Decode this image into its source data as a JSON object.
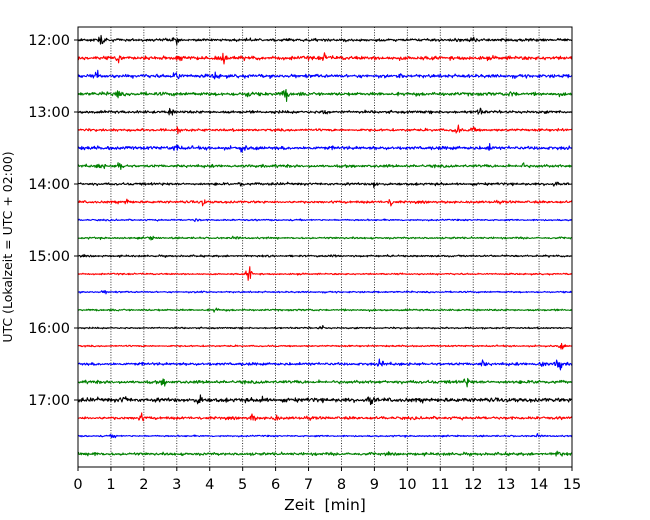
{
  "chart_data": {
    "type": "line",
    "title": "",
    "xlabel": "Zeit  [min]",
    "ylabel": "UTC (Lokalzeit = UTC + 02:00)",
    "xlim": [
      0,
      15
    ],
    "x_ticks": [
      "0",
      "1",
      "2",
      "3",
      "4",
      "5",
      "6",
      "7",
      "8",
      "9",
      "10",
      "11",
      "12",
      "13",
      "14",
      "15"
    ],
    "y_ticks": [
      "12:00",
      "13:00",
      "14:00",
      "15:00",
      "16:00",
      "17:00"
    ],
    "grid": {
      "vertical": true,
      "style": "dotted"
    },
    "trace_interval_minutes": 15,
    "colors": [
      "#000000",
      "#ff0000",
      "#0000ff",
      "#008000"
    ],
    "series": [
      {
        "start": "12:00",
        "noise": 0.9,
        "events": [
          [
            0.7,
            3.2
          ],
          [
            3.0,
            2.0
          ],
          [
            12.0,
            1.8
          ]
        ]
      },
      {
        "start": "12:15",
        "noise": 1.2,
        "events": [
          [
            1.2,
            3.0
          ],
          [
            3.1,
            3.5
          ],
          [
            4.4,
            2.2
          ],
          [
            7.5,
            2.0
          ]
        ]
      },
      {
        "start": "12:30",
        "noise": 1.1,
        "events": [
          [
            0.6,
            2.0
          ],
          [
            3.0,
            3.5
          ],
          [
            4.2,
            2.0
          ],
          [
            9.8,
            1.8
          ]
        ]
      },
      {
        "start": "12:45",
        "noise": 1.1,
        "events": [
          [
            1.2,
            2.0
          ],
          [
            5.2,
            2.5
          ],
          [
            6.3,
            4.0
          ],
          [
            13.2,
            2.0
          ]
        ]
      },
      {
        "start": "13:00",
        "noise": 0.9,
        "events": [
          [
            2.8,
            2.0
          ],
          [
            7.5,
            2.0
          ],
          [
            12.2,
            2.0
          ]
        ]
      },
      {
        "start": "13:15",
        "noise": 0.8,
        "events": [
          [
            3.0,
            1.6
          ],
          [
            11.5,
            3.0
          ],
          [
            12.0,
            2.0
          ]
        ]
      },
      {
        "start": "13:30",
        "noise": 1.1,
        "events": [
          [
            3.0,
            2.0
          ],
          [
            5.0,
            2.2
          ],
          [
            12.5,
            1.8
          ]
        ]
      },
      {
        "start": "13:45",
        "noise": 0.9,
        "events": [
          [
            0.7,
            2.5
          ],
          [
            1.3,
            3.5
          ],
          [
            13.5,
            1.6
          ]
        ]
      },
      {
        "start": "14:00",
        "noise": 0.8,
        "events": [
          [
            4.9,
            2.0
          ],
          [
            9.0,
            2.5
          ],
          [
            14.5,
            1.4
          ]
        ]
      },
      {
        "start": "14:15",
        "noise": 0.8,
        "events": [
          [
            1.5,
            1.6
          ],
          [
            3.8,
            1.8
          ],
          [
            9.5,
            2.2
          ]
        ]
      },
      {
        "start": "14:30",
        "noise": 0.5,
        "events": [
          [
            3.6,
            1.0
          ]
        ]
      },
      {
        "start": "14:45",
        "noise": 0.6,
        "events": [
          [
            2.2,
            1.2
          ],
          [
            4.8,
            1.0
          ]
        ]
      },
      {
        "start": "15:00",
        "noise": 0.6,
        "events": [
          [
            7.8,
            1.2
          ]
        ]
      },
      {
        "start": "15:15",
        "noise": 0.5,
        "events": [
          [
            5.2,
            5.0
          ]
        ]
      },
      {
        "start": "15:30",
        "noise": 0.5,
        "events": [
          [
            0.8,
            1.0
          ],
          [
            3.8,
            1.0
          ]
        ]
      },
      {
        "start": "15:45",
        "noise": 0.6,
        "events": [
          [
            4.2,
            1.4
          ]
        ]
      },
      {
        "start": "16:00",
        "noise": 0.5,
        "events": [
          [
            7.4,
            1.4
          ]
        ]
      },
      {
        "start": "16:15",
        "noise": 0.5,
        "events": [
          [
            14.7,
            2.0
          ]
        ]
      },
      {
        "start": "16:30",
        "noise": 0.9,
        "events": [
          [
            9.2,
            2.5
          ],
          [
            12.3,
            2.0
          ],
          [
            14.1,
            2.5
          ],
          [
            14.6,
            5.0
          ]
        ]
      },
      {
        "start": "16:45",
        "noise": 1.0,
        "events": [
          [
            2.6,
            2.0
          ],
          [
            11.8,
            2.8
          ],
          [
            14.0,
            1.8
          ]
        ]
      },
      {
        "start": "17:00",
        "noise": 1.3,
        "events": [
          [
            1.4,
            2.2
          ],
          [
            3.7,
            3.5
          ],
          [
            5.6,
            2.5
          ],
          [
            8.9,
            3.5
          ]
        ]
      },
      {
        "start": "17:15",
        "noise": 0.9,
        "events": [
          [
            1.9,
            2.5
          ],
          [
            5.3,
            2.0
          ],
          [
            6.0,
            2.0
          ]
        ]
      },
      {
        "start": "17:30",
        "noise": 0.5,
        "events": [
          [
            1.1,
            1.2
          ],
          [
            14.0,
            1.0
          ]
        ]
      },
      {
        "start": "17:45",
        "noise": 0.9,
        "events": [
          [
            0.5,
            1.4
          ],
          [
            14.6,
            2.2
          ]
        ]
      }
    ]
  }
}
